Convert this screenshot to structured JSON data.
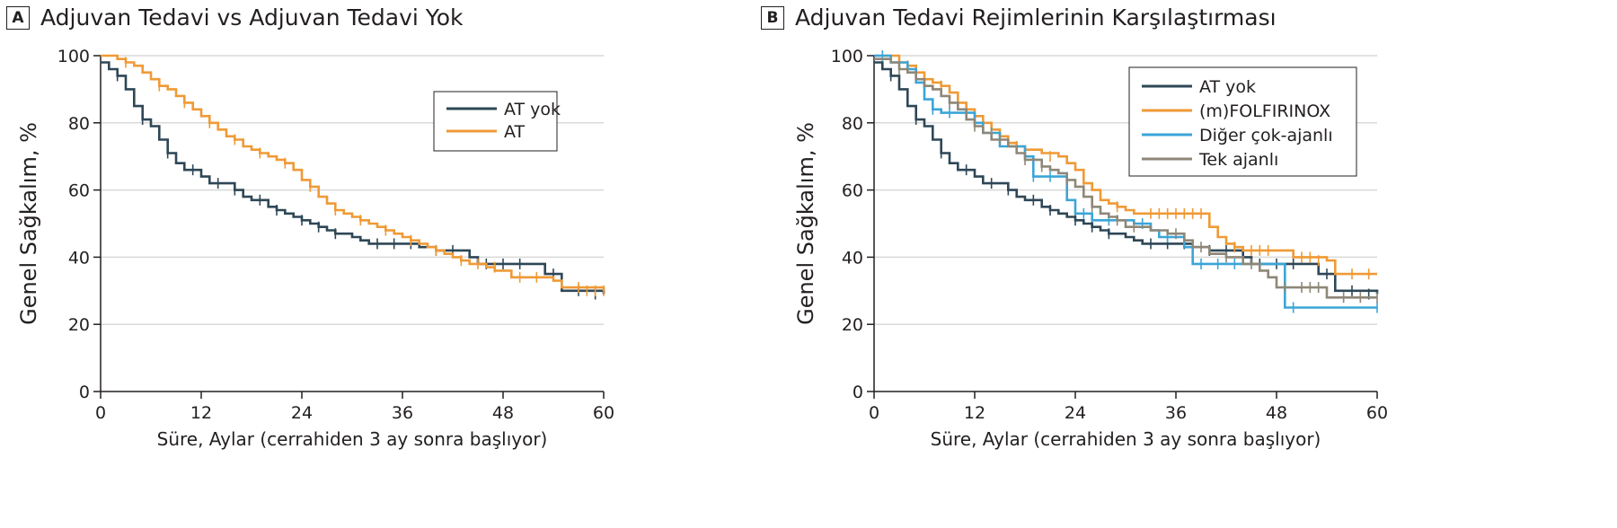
{
  "chart_data": [
    {
      "panel_letter": "A",
      "title": "Adjuvan Tedavi vs Adjuvan Tedavi Yok",
      "type": "line",
      "step": true,
      "xlabel": "Süre, Aylar (cerrahiden 3 ay sonra başlıyor)",
      "ylabel": "Genel Sağkalım, %",
      "xlim": [
        0,
        60
      ],
      "ylim": [
        0,
        100
      ],
      "xticks": [
        0,
        12,
        24,
        36,
        48,
        60
      ],
      "yticks": [
        0,
        20,
        40,
        60,
        80,
        100
      ],
      "grid": true,
      "legend_position": "top-right",
      "series": [
        {
          "name": "AT yok",
          "color": "#2e4756",
          "x": [
            0,
            1,
            2,
            3,
            4,
            5,
            6,
            7,
            8,
            9,
            10,
            12,
            13,
            16,
            17,
            18,
            20,
            21,
            22,
            23,
            24,
            25,
            26,
            27,
            28,
            30,
            31,
            32,
            33,
            38,
            40,
            44,
            45,
            49,
            53,
            55,
            60
          ],
          "y": [
            98,
            96,
            94,
            90,
            85,
            81,
            79,
            75,
            71,
            68,
            66,
            64,
            62,
            60,
            58,
            57,
            55,
            54,
            53,
            52,
            51,
            50,
            49,
            48,
            47,
            46,
            45,
            44,
            44,
            43,
            42,
            40,
            38,
            38,
            35,
            30,
            29
          ],
          "censor_x": [
            2,
            5,
            8,
            11,
            14,
            16,
            19,
            21,
            24,
            26,
            28,
            33,
            35,
            37,
            40,
            42,
            46,
            48,
            50,
            54,
            57,
            59
          ],
          "censor_y": [
            94,
            81,
            71,
            66,
            62,
            60,
            57,
            54,
            51,
            49,
            47,
            44,
            44,
            44,
            42,
            42,
            38,
            38,
            38,
            35,
            30,
            29
          ]
        },
        {
          "name": "AT",
          "color": "#ef9a36",
          "x": [
            0,
            2,
            3,
            4,
            5,
            6,
            7,
            8,
            9,
            10,
            11,
            12,
            13,
            14,
            15,
            16,
            17,
            18,
            19,
            20,
            21,
            22,
            23,
            24,
            25,
            26,
            27,
            28,
            29,
            30,
            31,
            32,
            33,
            34,
            35,
            36,
            37,
            38,
            39,
            40,
            41,
            42,
            43,
            44,
            45,
            46,
            47,
            49,
            50,
            52,
            54,
            55,
            60
          ],
          "y": [
            100,
            99,
            98,
            97,
            95,
            93,
            91,
            90,
            88,
            86,
            84,
            82,
            80,
            78,
            76,
            75,
            73,
            72,
            71,
            70,
            69,
            68,
            66,
            63,
            61,
            58,
            56,
            54,
            53,
            52,
            51,
            50,
            49,
            48,
            47,
            46,
            45,
            44,
            43,
            42,
            41,
            40,
            39,
            38,
            38,
            37,
            36,
            34,
            34,
            34,
            33,
            31,
            30
          ],
          "censor_x": [
            3,
            7,
            10,
            13,
            16,
            19,
            22,
            25,
            28,
            31,
            34,
            37,
            40,
            43,
            45,
            47,
            50,
            52,
            57,
            58,
            59,
            60
          ],
          "censor_y": [
            98,
            91,
            86,
            80,
            75,
            71,
            68,
            61,
            54,
            51,
            48,
            45,
            42,
            39,
            38,
            37,
            34,
            34,
            31,
            30,
            30,
            30
          ]
        }
      ]
    },
    {
      "panel_letter": "B",
      "title": "Adjuvan Tedavi Rejimlerinin Karşılaştırması",
      "type": "line",
      "step": true,
      "xlabel": "Süre, Aylar (cerrahiden 3 ay sonra başlıyor)",
      "ylabel": "Genel Sağkalım, %",
      "xlim": [
        0,
        60
      ],
      "ylim": [
        0,
        100
      ],
      "xticks": [
        0,
        12,
        24,
        36,
        48,
        60
      ],
      "yticks": [
        0,
        20,
        40,
        60,
        80,
        100
      ],
      "grid": true,
      "legend_position": "top-right",
      "series": [
        {
          "name": "AT yok",
          "color": "#2e4756",
          "x": [
            0,
            1,
            2,
            3,
            4,
            5,
            6,
            7,
            8,
            9,
            10,
            12,
            13,
            16,
            17,
            18,
            20,
            21,
            22,
            23,
            24,
            25,
            26,
            27,
            28,
            30,
            31,
            32,
            33,
            38,
            40,
            44,
            45,
            49,
            53,
            55,
            60
          ],
          "y": [
            98,
            96,
            94,
            90,
            85,
            81,
            79,
            75,
            71,
            68,
            66,
            64,
            62,
            60,
            58,
            57,
            55,
            54,
            53,
            52,
            51,
            50,
            49,
            48,
            47,
            46,
            45,
            44,
            44,
            43,
            42,
            40,
            38,
            38,
            35,
            30,
            29
          ],
          "censor_x": [
            2,
            5,
            8,
            11,
            14,
            16,
            19,
            21,
            24,
            26,
            28,
            33,
            35,
            37,
            40,
            42,
            46,
            48,
            50,
            54,
            57,
            59
          ],
          "censor_y": [
            94,
            81,
            71,
            66,
            62,
            60,
            57,
            54,
            51,
            49,
            47,
            44,
            44,
            44,
            42,
            42,
            38,
            38,
            38,
            35,
            30,
            29
          ]
        },
        {
          "name": "(m)FOLFIRINOX",
          "color": "#ef9a36",
          "x": [
            0,
            3,
            4,
            5,
            6,
            7,
            8,
            9,
            10,
            11,
            12,
            13,
            14,
            15,
            16,
            17,
            18,
            20,
            22,
            23,
            24,
            25,
            26,
            27,
            28,
            29,
            30,
            31,
            32,
            40,
            41,
            42,
            43,
            44,
            46,
            50,
            54,
            55,
            60
          ],
          "y": [
            100,
            98,
            97,
            95,
            93,
            92,
            91,
            89,
            86,
            84,
            82,
            80,
            78,
            76,
            74,
            73,
            72,
            71,
            70,
            68,
            66,
            62,
            60,
            57,
            56,
            55,
            54,
            53,
            53,
            49,
            46,
            44,
            43,
            42,
            42,
            40,
            39,
            35,
            35
          ],
          "censor_x": [
            4,
            8,
            13,
            17,
            21,
            25,
            29,
            33,
            34,
            35,
            36,
            37,
            38,
            39,
            43,
            45,
            46,
            47,
            51,
            52,
            53,
            57,
            59
          ],
          "censor_y": [
            97,
            91,
            80,
            73,
            70,
            62,
            55,
            53,
            53,
            53,
            53,
            53,
            53,
            53,
            43,
            42,
            42,
            42,
            40,
            40,
            39,
            35,
            35
          ]
        },
        {
          "name": "Diğer çok-ajanlı",
          "color": "#3ba5d8",
          "x": [
            0,
            2,
            4,
            5,
            6,
            7,
            8,
            12,
            13,
            15,
            18,
            19,
            22,
            23,
            24,
            26,
            30,
            31,
            33,
            34,
            37,
            38,
            40,
            42,
            44,
            45,
            47,
            48,
            49,
            54,
            60
          ],
          "y": [
            100,
            98,
            96,
            92,
            87,
            84,
            83,
            80,
            77,
            73,
            70,
            64,
            64,
            57,
            53,
            51,
            51,
            50,
            48,
            46,
            43,
            38,
            38,
            38,
            38,
            38,
            38,
            38,
            25,
            25,
            25
          ],
          "censor_x": [
            1,
            7,
            9,
            14,
            19,
            21,
            25,
            28,
            32,
            35,
            39,
            41,
            43,
            50,
            60
          ],
          "censor_y": [
            100,
            84,
            83,
            77,
            64,
            64,
            53,
            51,
            50,
            46,
            38,
            38,
            38,
            25,
            25
          ]
        },
        {
          "name": "Tek ajanlı",
          "color": "#8e8778",
          "x": [
            0,
            2,
            3,
            4,
            5,
            6,
            7,
            8,
            9,
            10,
            11,
            12,
            13,
            14,
            16,
            17,
            18,
            20,
            21,
            22,
            23,
            24,
            25,
            26,
            27,
            28,
            29,
            30,
            33,
            35,
            37,
            38,
            40,
            42,
            44,
            46,
            47,
            48,
            54,
            60
          ],
          "y": [
            99,
            98,
            96,
            95,
            93,
            91,
            90,
            88,
            86,
            84,
            81,
            79,
            77,
            75,
            73,
            71,
            69,
            67,
            66,
            65,
            63,
            61,
            58,
            55,
            53,
            52,
            51,
            49,
            48,
            47,
            45,
            43,
            41,
            40,
            38,
            36,
            34,
            31,
            28,
            28
          ],
          "censor_x": [
            3,
            9,
            12,
            15,
            18,
            20,
            23,
            26,
            29,
            31,
            36,
            39,
            42,
            45,
            49,
            51,
            52,
            53,
            56,
            58,
            60
          ],
          "censor_y": [
            96,
            86,
            79,
            75,
            69,
            67,
            63,
            55,
            51,
            49,
            47,
            43,
            40,
            38,
            31,
            31,
            31,
            31,
            28,
            28,
            28
          ]
        }
      ]
    }
  ]
}
